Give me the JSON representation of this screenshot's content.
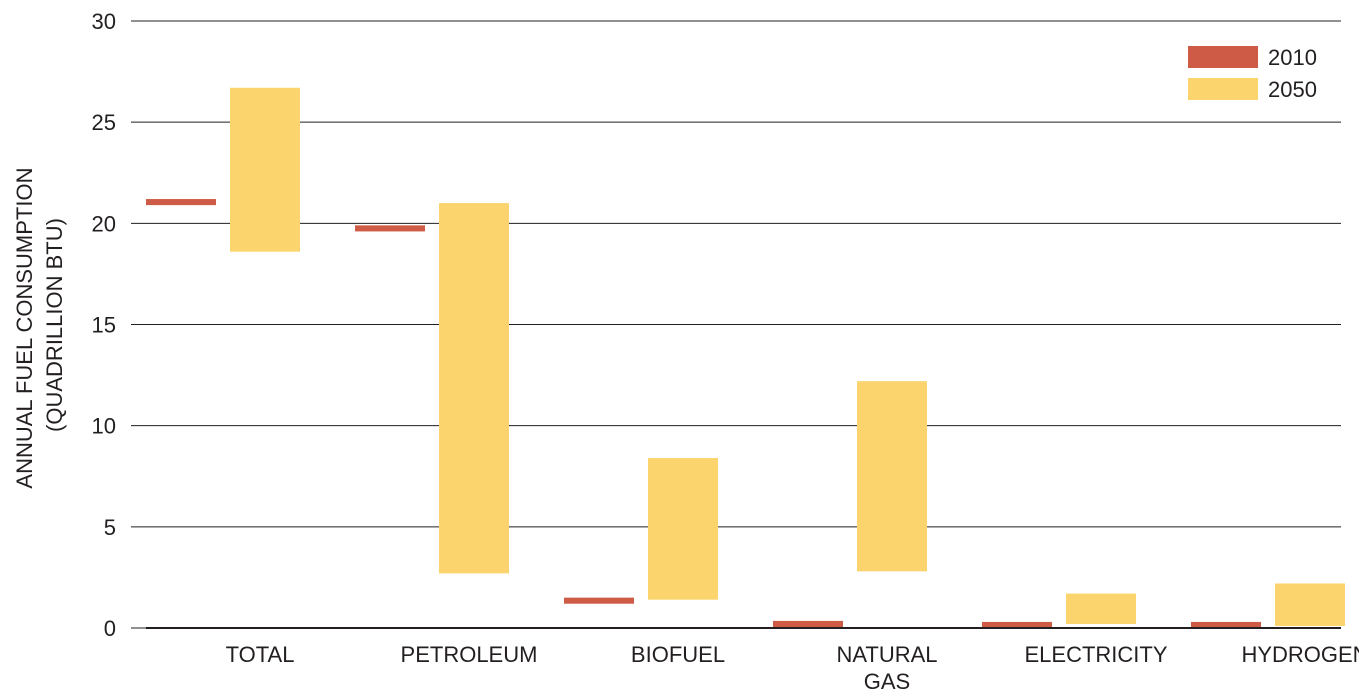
{
  "chart_data": {
    "type": "bar",
    "subtype": "floating-range",
    "categories": [
      "TOTAL",
      "PETROLEUM",
      "BIOFUEL",
      "NATURAL GAS",
      "ELECTRICITY",
      "HYDROGEN"
    ],
    "category_lines": [
      [
        "TOTAL"
      ],
      [
        "PETROLEUM"
      ],
      [
        "BIOFUEL"
      ],
      [
        "NATURAL",
        "GAS"
      ],
      [
        "ELECTRICITY"
      ],
      [
        "HYDROGEN"
      ]
    ],
    "series": [
      {
        "name": "2010",
        "color": "#cd5b45",
        "ranges": [
          [
            20.9,
            21.2
          ],
          [
            19.6,
            19.9
          ],
          [
            1.2,
            1.5
          ],
          [
            0.05,
            0.35
          ],
          [
            0.05,
            0.3
          ],
          [
            0.05,
            0.3
          ]
        ]
      },
      {
        "name": "2050",
        "color": "#fcd46e",
        "ranges": [
          [
            18.6,
            26.7
          ],
          [
            2.7,
            21.0
          ],
          [
            1.4,
            8.4
          ],
          [
            2.8,
            12.2
          ],
          [
            0.2,
            1.7
          ],
          [
            0.1,
            2.2
          ]
        ]
      }
    ],
    "ylabel_lines": [
      "ANNUAL FUEL CONSUMPTION",
      "(QUADRILLION BTU)"
    ],
    "ylabel": "ANNUAL FUEL CONSUMPTION (QUADRILLION BTU)",
    "xlabel": "",
    "ylim": [
      0,
      30
    ],
    "yticks": [
      0,
      5,
      10,
      15,
      20,
      25,
      30
    ],
    "grid": true,
    "legend_position": "top-right",
    "gridline_color": "#231f20",
    "axis_color": "#231f20"
  }
}
